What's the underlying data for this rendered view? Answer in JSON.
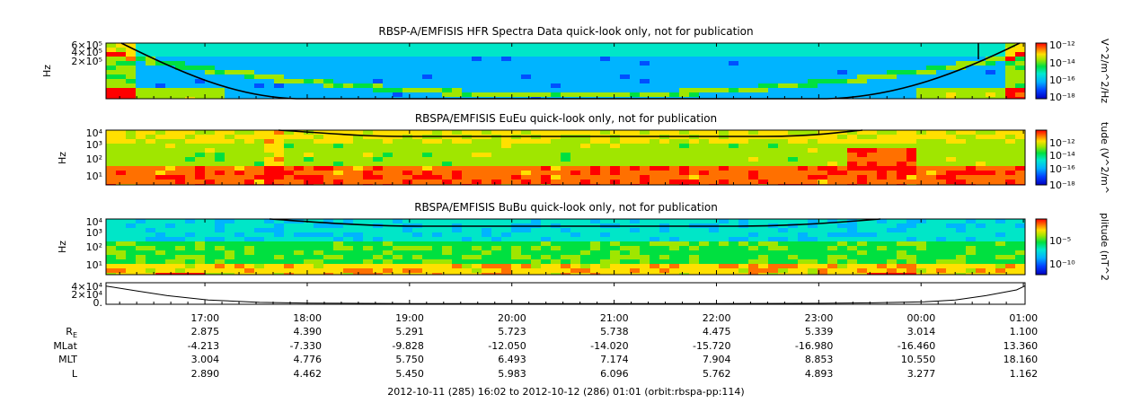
{
  "figure": {
    "footer": "2012-10-11 (285) 16:02 to 2012-10-12 (286) 01:01 (orbit:rbspa-pp:114)"
  },
  "colormap": [
    "#0000d0",
    "#0050ff",
    "#00b4ff",
    "#00e6c8",
    "#00e040",
    "#a0e600",
    "#ffe000",
    "#ff7000",
    "#ff0000"
  ],
  "chart_data": [
    {
      "type": "heatmap",
      "title": "RBSP-A/EMFISIS  HFR Spectra Data quick-look only, not for publication",
      "ylabel": "Hz",
      "y_scale": "log",
      "yticks": [
        "6×10⁵",
        "4×10⁵",
        "2×10⁵"
      ],
      "colorbar": {
        "label": "V^2/m^2/Hz",
        "ticks": [
          "10⁻¹²",
          "10⁻¹⁴",
          "10⁻¹⁶",
          "10⁻¹⁸"
        ]
      }
    },
    {
      "type": "heatmap",
      "title": "RBSPA/EMFISIS  EuEu quick-look only, not for publication",
      "ylabel": "Hz",
      "y_scale": "log",
      "yticks": [
        "10⁴",
        "10³",
        "10²",
        "10¹"
      ],
      "colorbar": {
        "label": "tude (V^2/m^",
        "ticks": [
          "10⁻¹²",
          "10⁻¹⁴",
          "10⁻¹⁶",
          "10⁻¹⁸"
        ]
      }
    },
    {
      "type": "heatmap",
      "title": "RBSPA/EMFISIS  BuBu quick-look only, not for publication",
      "ylabel": "Hz",
      "y_scale": "log",
      "yticks": [
        "10⁴",
        "10³",
        "10²",
        "10¹"
      ],
      "colorbar": {
        "label": "plitude (nT^2",
        "ticks": [
          "10⁻⁵",
          "10⁻¹⁰"
        ]
      }
    },
    {
      "type": "line",
      "title": "",
      "yticks": [
        "4×10⁴",
        "2×10⁴",
        "0."
      ],
      "x": [
        0,
        0.3,
        0.6,
        1,
        1.5,
        2,
        3,
        4,
        5,
        6,
        7,
        7.5,
        8,
        8.3,
        8.6,
        8.9,
        8.98
      ],
      "y": [
        38000,
        28000,
        18000,
        9000,
        4000,
        2200,
        1500,
        1300,
        1300,
        1500,
        2000,
        3000,
        5000,
        9000,
        18000,
        30000,
        38000
      ]
    }
  ],
  "time_axis": {
    "labels": [
      "17:00",
      "18:00",
      "19:00",
      "20:00",
      "21:00",
      "22:00",
      "23:00",
      "00:00",
      "01:00"
    ]
  },
  "ephemeris": [
    {
      "label": "R",
      "sub": "E",
      "values": [
        "2.875",
        "4.390",
        "5.291",
        "5.723",
        "5.738",
        "4.475",
        "5.339",
        "3.014",
        "1.100"
      ]
    },
    {
      "label": "MLat",
      "values": [
        "-4.213",
        "-7.330",
        "-9.828",
        "-12.050",
        "-14.020",
        "-15.720",
        "-16.980",
        "-16.460",
        "13.360"
      ]
    },
    {
      "label": "MLT",
      "values": [
        "3.004",
        "4.776",
        "5.750",
        "6.493",
        "7.174",
        "7.904",
        "8.853",
        "10.550",
        "18.160"
      ]
    },
    {
      "label": "L",
      "values": [
        "2.890",
        "4.462",
        "5.450",
        "5.983",
        "6.096",
        "5.762",
        "4.893",
        "3.277",
        "1.162"
      ]
    }
  ]
}
